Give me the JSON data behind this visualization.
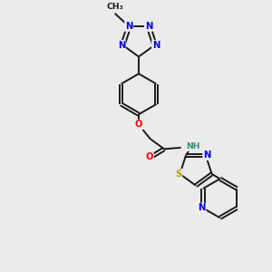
{
  "background_color": "#ebebeb",
  "bond_color": "#1a1a1a",
  "atom_colors": {
    "N": "#0000e0",
    "O": "#ff0000",
    "S": "#b8a000",
    "H": "#3a8a7a"
  },
  "figure_width": 3.0,
  "figure_height": 3.0,
  "dpi": 100,
  "lw": 1.4,
  "fs": 7.2
}
